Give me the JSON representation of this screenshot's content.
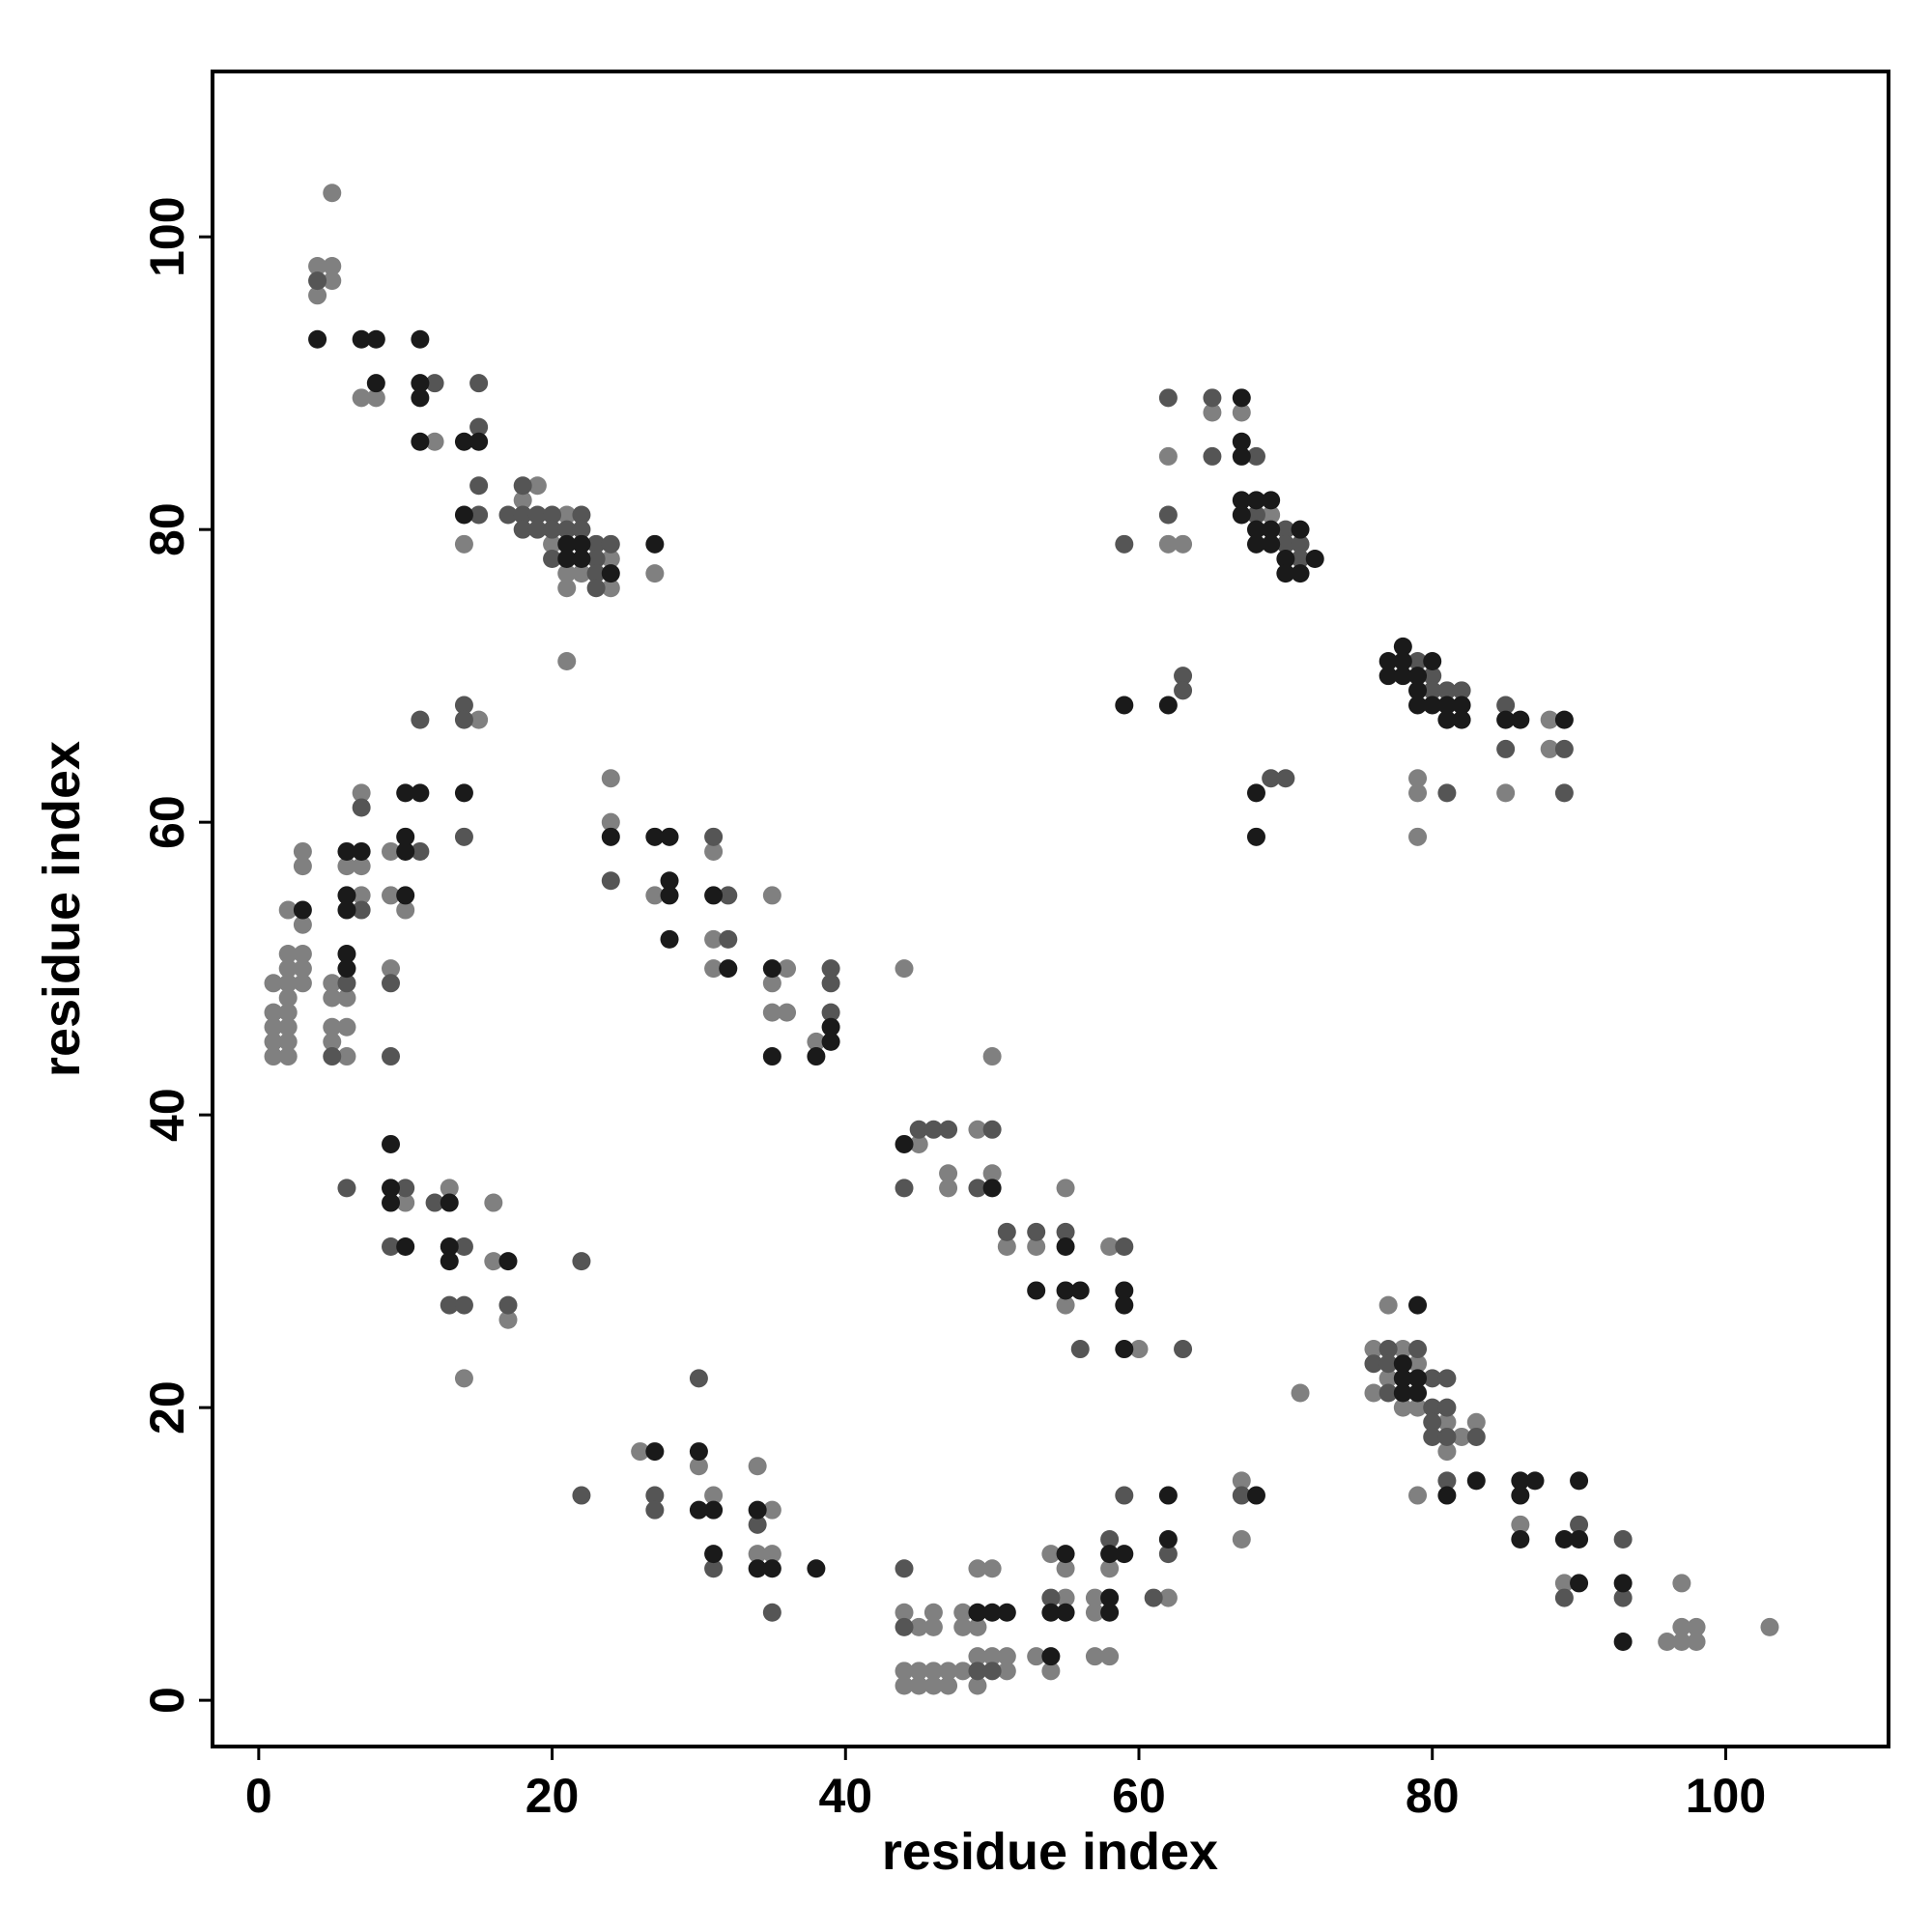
{
  "chart_data": {
    "type": "scatter",
    "xlabel": "residue index",
    "ylabel": "residue index",
    "xlim": [
      -3.15,
      111.1
    ],
    "ylim": [
      -3.16,
      111.3
    ],
    "xticks": [
      0,
      20,
      40,
      60,
      80,
      100
    ],
    "yticks": [
      0,
      20,
      40,
      60,
      80,
      100
    ],
    "series": [
      {
        "color": "#808080",
        "x": [
          5,
          4,
          5,
          5,
          4,
          7,
          8,
          12,
          19,
          21,
          18,
          14,
          20,
          24,
          21,
          22,
          27,
          21,
          24,
          21,
          15,
          7,
          24,
          24,
          3,
          9,
          3,
          6,
          7,
          31,
          7,
          9,
          27,
          35,
          2,
          10,
          3,
          31,
          2,
          3,
          1,
          1,
          1,
          1,
          1,
          2,
          2,
          2,
          2,
          2,
          2,
          2,
          3,
          3,
          5,
          5,
          6,
          9,
          5,
          6,
          5,
          6,
          31,
          36,
          35,
          35,
          36,
          38,
          10,
          13,
          16,
          16,
          17,
          14,
          26,
          30,
          34,
          31,
          35,
          34,
          35,
          44,
          50,
          45,
          49,
          47,
          50,
          47,
          55,
          51,
          53,
          58,
          55,
          60,
          49,
          50,
          44,
          46,
          48,
          45,
          46,
          48,
          49,
          44,
          45,
          46,
          47,
          48,
          51,
          44,
          45,
          46,
          47,
          49,
          49,
          50,
          51,
          53,
          54,
          54,
          55,
          55,
          57,
          57,
          57,
          58,
          58,
          62,
          67,
          67,
          71,
          76,
          78,
          77,
          79,
          76,
          77,
          78,
          79,
          81,
          82,
          83,
          81,
          79,
          86,
          89,
          96,
          97,
          98,
          97,
          98,
          97,
          103,
          62,
          62,
          63,
          65,
          67,
          69,
          88,
          88,
          79,
          79,
          85,
          79
        ],
        "y": [
          103,
          98,
          98,
          97,
          96,
          89,
          89,
          86,
          83,
          81,
          82,
          79,
          79,
          78,
          77,
          77,
          77,
          76,
          76,
          71,
          67,
          62,
          63,
          60,
          58,
          58,
          57,
          57,
          57,
          58,
          55,
          55,
          55,
          55,
          54,
          54,
          53,
          52,
          51,
          51,
          49,
          47,
          46,
          45,
          44,
          50,
          49,
          48,
          47,
          46,
          45,
          44,
          50,
          49,
          49,
          48,
          48,
          50,
          46,
          46,
          45,
          44,
          50,
          50,
          49,
          47,
          47,
          45,
          34,
          35,
          34,
          30,
          26,
          22,
          17,
          16,
          16,
          14,
          13,
          10,
          10,
          50,
          44,
          38,
          39,
          36,
          36,
          35,
          35,
          31,
          31,
          31,
          27,
          24,
          9,
          9,
          6,
          6,
          6,
          5,
          5,
          5,
          5,
          2,
          2,
          2,
          2,
          2,
          2,
          1,
          1,
          1,
          1,
          1,
          3,
          3,
          3,
          3,
          2,
          10,
          9,
          7,
          7,
          6,
          3,
          3,
          9,
          7,
          15,
          11,
          21,
          24,
          24,
          27,
          23,
          21,
          22,
          20,
          20,
          19,
          18,
          19,
          17,
          14,
          12,
          8,
          4,
          4,
          4,
          5,
          5,
          8,
          5,
          85,
          79,
          79,
          88,
          88,
          81,
          67,
          65,
          63,
          62,
          62,
          59
        ]
      },
      {
        "color": "#555555",
        "x": [
          4,
          12,
          15,
          15,
          15,
          18,
          15,
          17,
          18,
          19,
          20,
          22,
          18,
          19,
          20,
          21,
          22,
          23,
          24,
          20,
          23,
          23,
          23,
          11,
          14,
          14,
          7,
          14,
          11,
          31,
          24,
          32,
          7,
          32,
          6,
          9,
          5,
          39,
          39,
          39,
          9,
          6,
          10,
          12,
          9,
          14,
          22,
          13,
          14,
          17,
          30,
          27,
          22,
          27,
          34,
          31,
          35,
          45,
          46,
          47,
          50,
          44,
          49,
          51,
          53,
          55,
          59,
          56,
          63,
          44,
          44,
          49,
          50,
          54,
          58,
          59,
          61,
          62,
          67,
          77,
          79,
          76,
          77,
          77,
          80,
          81,
          80,
          81,
          80,
          83,
          80,
          81,
          81,
          90,
          89,
          93,
          93,
          59,
          62,
          62,
          65,
          65,
          68,
          68,
          70,
          70,
          71,
          71,
          63,
          63,
          69,
          70,
          79,
          80,
          80,
          81,
          82,
          85,
          85,
          89,
          81,
          89
        ],
        "y": [
          97,
          90,
          90,
          87,
          83,
          83,
          81,
          81,
          81,
          81,
          81,
          81,
          80,
          80,
          80,
          80,
          80,
          79,
          79,
          78,
          78,
          77,
          76,
          67,
          68,
          67,
          61,
          59,
          58,
          59,
          56,
          55,
          54,
          52,
          49,
          49,
          44,
          50,
          49,
          47,
          44,
          35,
          35,
          34,
          31,
          31,
          30,
          27,
          27,
          27,
          22,
          14,
          14,
          13,
          12,
          9,
          6,
          39,
          39,
          39,
          39,
          35,
          35,
          32,
          32,
          32,
          31,
          24,
          24,
          9,
          5,
          2,
          2,
          7,
          11,
          14,
          7,
          10,
          14,
          24,
          24,
          23,
          23,
          21,
          22,
          22,
          20,
          20,
          19,
          18,
          18,
          18,
          15,
          12,
          7,
          11,
          7,
          79,
          89,
          81,
          89,
          85,
          85,
          81,
          80,
          79,
          79,
          78,
          70,
          69,
          63,
          63,
          71,
          70,
          69,
          69,
          69,
          68,
          65,
          65,
          62,
          62
        ]
      },
      {
        "color": "#1a1a1a",
        "x": [
          4,
          7,
          8,
          11,
          8,
          11,
          11,
          11,
          14,
          15,
          14,
          21,
          22,
          27,
          21,
          22,
          24,
          10,
          11,
          14,
          10,
          24,
          6,
          7,
          10,
          27,
          28,
          28,
          6,
          10,
          28,
          31,
          3,
          6,
          28,
          6,
          6,
          32,
          35,
          35,
          39,
          39,
          38,
          9,
          9,
          9,
          13,
          10,
          13,
          13,
          17,
          27,
          30,
          30,
          31,
          34,
          31,
          34,
          35,
          38,
          44,
          50,
          55,
          53,
          55,
          56,
          59,
          59,
          59,
          49,
          50,
          51,
          54,
          55,
          54,
          55,
          58,
          58,
          58,
          59,
          62,
          62,
          68,
          79,
          78,
          78,
          79,
          78,
          79,
          81,
          83,
          86,
          87,
          86,
          86,
          89,
          90,
          90,
          90,
          93,
          93,
          67,
          67,
          67,
          67,
          68,
          69,
          67,
          68,
          69,
          71,
          68,
          69,
          70,
          72,
          70,
          71,
          59,
          62,
          68,
          68,
          77,
          78,
          77,
          78,
          80,
          78,
          79,
          79,
          79,
          80,
          81,
          82,
          81,
          82,
          85,
          86,
          89
        ],
        "y": [
          93,
          93,
          93,
          93,
          90,
          90,
          89,
          86,
          86,
          86,
          81,
          79,
          79,
          79,
          78,
          78,
          77,
          62,
          62,
          62,
          59,
          59,
          58,
          58,
          58,
          59,
          59,
          56,
          55,
          55,
          55,
          55,
          54,
          54,
          52,
          51,
          50,
          50,
          50,
          44,
          46,
          45,
          44,
          38,
          35,
          34,
          34,
          31,
          31,
          30,
          30,
          17,
          17,
          13,
          13,
          13,
          10,
          9,
          9,
          9,
          38,
          35,
          31,
          28,
          28,
          28,
          28,
          27,
          24,
          6,
          6,
          6,
          3,
          10,
          6,
          6,
          7,
          6,
          10,
          10,
          14,
          11,
          14,
          27,
          23,
          21,
          21,
          22,
          22,
          14,
          15,
          15,
          15,
          14,
          11,
          11,
          11,
          15,
          8,
          8,
          4,
          89,
          86,
          85,
          82,
          82,
          82,
          81,
          80,
          80,
          80,
          79,
          79,
          78,
          78,
          77,
          77,
          68,
          68,
          62,
          59,
          71,
          72,
          70,
          70,
          71,
          71,
          70,
          69,
          68,
          68,
          68,
          68,
          67,
          67,
          67,
          67,
          67
        ]
      }
    ]
  }
}
